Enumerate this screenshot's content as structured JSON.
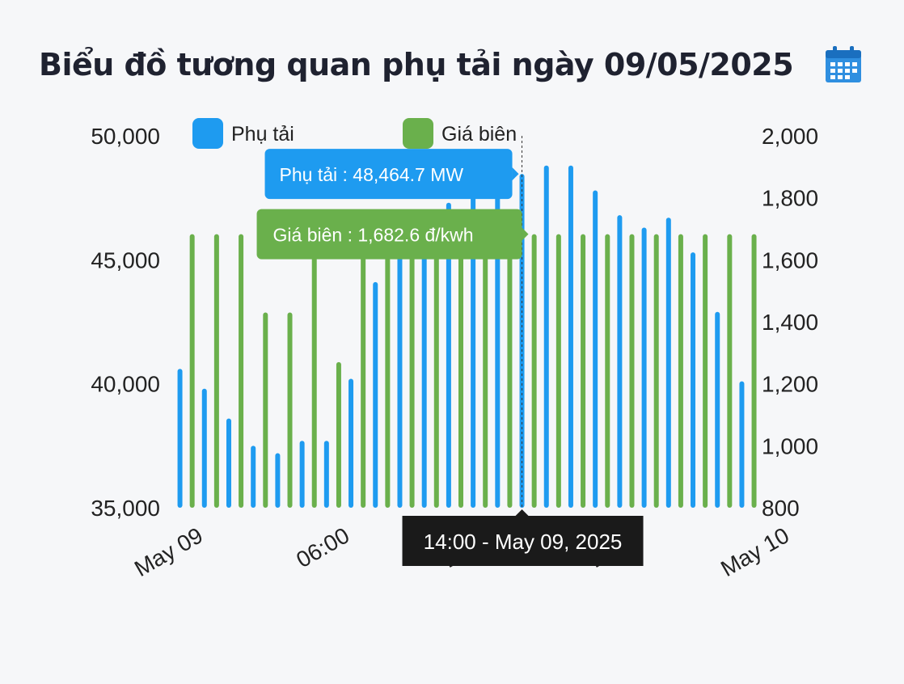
{
  "header": {
    "title": "Biểu đồ tương quan phụ tải ngày 09/05/2025",
    "calendar_icon": "calendar-icon",
    "accent": "#2f8fe0"
  },
  "colors": {
    "load": "#1e9bf0",
    "price": "#6ab04c",
    "crosshair": "#333333",
    "time_tooltip_bg": "#1a1a1a"
  },
  "chart_data": {
    "type": "bar",
    "x": [
      "00:00",
      "00:30",
      "01:00",
      "01:30",
      "02:00",
      "02:30",
      "03:00",
      "03:30",
      "04:00",
      "04:30",
      "05:00",
      "05:30",
      "06:00",
      "06:30",
      "07:00",
      "07:30",
      "08:00",
      "08:30",
      "09:00",
      "09:30",
      "10:00",
      "10:30",
      "11:00",
      "11:30",
      "12:00",
      "12:30",
      "13:00",
      "13:30",
      "14:00",
      "14:30",
      "15:00",
      "15:30",
      "16:00",
      "16:30",
      "17:00",
      "17:30",
      "18:00",
      "18:30",
      "19:00",
      "19:30",
      "20:00",
      "20:30",
      "21:00",
      "21:30",
      "22:00",
      "22:30",
      "23:00",
      "23:30"
    ],
    "series": [
      {
        "name": "Phụ tải",
        "axis": "left",
        "values": [
          40600,
          null,
          39800,
          null,
          38600,
          null,
          37500,
          null,
          37200,
          null,
          37700,
          null,
          37700,
          null,
          40200,
          null,
          44100,
          null,
          45200,
          null,
          45900,
          null,
          47300,
          null,
          47800,
          null,
          48000,
          null,
          48464.7,
          null,
          48800,
          null,
          48800,
          null,
          47800,
          null,
          46800,
          null,
          46300,
          null,
          46700,
          null,
          45300,
          null,
          42900,
          null,
          40100,
          null
        ]
      },
      {
        "name": "Giá biên",
        "axis": "right",
        "values": [
          null,
          1682.6,
          null,
          1682.6,
          null,
          1682.6,
          null,
          1430,
          null,
          1430,
          null,
          1682.6,
          null,
          1270,
          null,
          1682.6,
          null,
          1682.6,
          null,
          1682.6,
          null,
          1682.6,
          null,
          1682.6,
          null,
          1682.6,
          null,
          1682.6,
          null,
          1682.6,
          null,
          1682.6,
          null,
          1682.6,
          null,
          1682.6,
          null,
          1682.6,
          null,
          1682.6,
          null,
          1682.6,
          null,
          1682.6,
          null,
          1682.6,
          null,
          1682.6
        ]
      }
    ],
    "y_left": {
      "min": 35000,
      "max": 50000,
      "ticks": [
        "35,000",
        "40,000",
        "45,000",
        "50,000"
      ]
    },
    "y_right": {
      "min": 800,
      "max": 2000,
      "ticks": [
        "800",
        "1,000",
        "1,200",
        "1,400",
        "1,600",
        "1,800",
        "2,000"
      ]
    },
    "x_ticks": [
      {
        "label": "May 09",
        "index": 0
      },
      {
        "label": "06:00",
        "index": 12
      },
      {
        "label": "12:00",
        "index": 24
      },
      {
        "label": "18:00",
        "index": 36
      },
      {
        "label": "May 10",
        "index": 48
      }
    ],
    "legend": {
      "position": "top",
      "items": [
        "Phụ tải",
        "Giá biên"
      ]
    },
    "hover": {
      "index": 28,
      "load_label": "Phụ tải : 48,464.7 MW",
      "price_label": "Giá biên : 1,682.6 đ/kwh",
      "time_label": "14:00 - May 09, 2025"
    }
  }
}
